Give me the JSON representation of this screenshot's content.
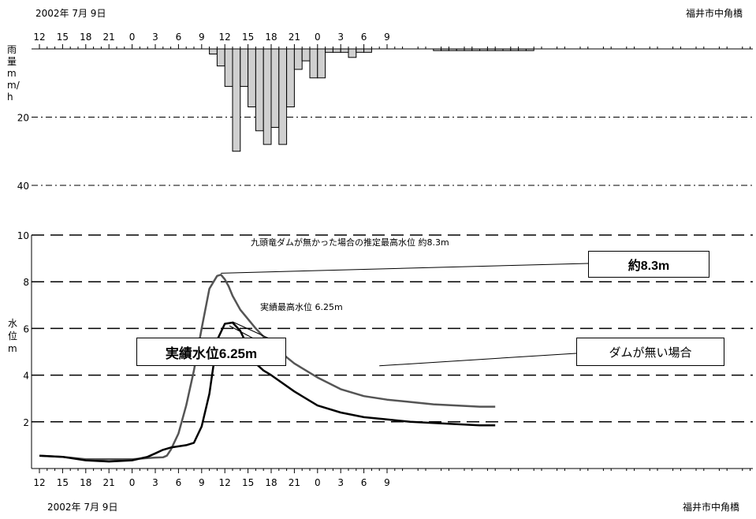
{
  "header": {
    "date_label": "2002年 7月 9日",
    "station_label": "福井市中角橋"
  },
  "footer": {
    "date_label": "2002年 7月 9日",
    "station_label": "福井市中角橋"
  },
  "colors": {
    "bar_fill": "#d0d0d0",
    "no_dam_line": "#555555",
    "actual_line": "#000000"
  },
  "chart_data": [
    {
      "type": "bar",
      "ylabel": "雨量 mm/h",
      "ylim": [
        0,
        40
      ],
      "y_ticks": [
        "20",
        "40"
      ],
      "inverted": true,
      "x_ticks": [
        "12",
        "15",
        "18",
        "21",
        "0",
        "3",
        "6",
        "9",
        "12",
        "15",
        "18",
        "21",
        "0",
        "3",
        "6",
        "9"
      ],
      "hours_since_start": [
        22,
        23,
        24,
        25,
        26,
        27,
        28,
        29,
        30,
        31,
        32,
        33,
        34,
        35,
        36,
        37,
        38,
        39,
        40,
        41,
        42,
        43,
        44,
        45,
        46,
        47,
        48,
        49,
        50,
        51,
        52,
        53,
        54,
        55,
        56,
        57,
        58,
        59,
        60,
        61,
        62,
        63,
        64,
        65
      ],
      "values": [
        1.5,
        5,
        11,
        30,
        11,
        17,
        24,
        28,
        23,
        28,
        17,
        6,
        3.5,
        8.5,
        8.5,
        1,
        1,
        1,
        2.5,
        1,
        1,
        0,
        0,
        0,
        0,
        0,
        0,
        0,
        0,
        0.5,
        0.5,
        0.5,
        0.5,
        0.5,
        0.5,
        0.5,
        0.5,
        0.5,
        0.5,
        0.5,
        0.5,
        0.5,
        0,
        0
      ]
    },
    {
      "type": "line",
      "ylabel": "水位 m",
      "ylim": [
        0,
        10
      ],
      "y_ticks": [
        "2",
        "4",
        "6",
        "8",
        "10"
      ],
      "x_ticks": [
        "12",
        "15",
        "18",
        "21",
        "0",
        "3",
        "6",
        "9",
        "12",
        "15",
        "18",
        "21",
        "0",
        "3",
        "6",
        "9"
      ],
      "series": [
        {
          "name": "ダムが無い場合",
          "hours_since_start": [
            0,
            3,
            6,
            9,
            12,
            14,
            15,
            16,
            16.5,
            17,
            18,
            19,
            20,
            21,
            22,
            23,
            23.5,
            24,
            24.5,
            25,
            26,
            27,
            28,
            30,
            33,
            36,
            39,
            42,
            45,
            48,
            51,
            54,
            57,
            59
          ],
          "values": [
            0.55,
            0.5,
            0.4,
            0.4,
            0.4,
            0.45,
            0.47,
            0.48,
            0.55,
            0.8,
            1.5,
            2.7,
            4.2,
            6.0,
            7.7,
            8.25,
            8.3,
            8.1,
            7.8,
            7.4,
            6.8,
            6.4,
            6.0,
            5.3,
            4.5,
            3.9,
            3.4,
            3.1,
            2.95,
            2.85,
            2.75,
            2.7,
            2.65,
            2.65
          ]
        },
        {
          "name": "実績水位",
          "hours_since_start": [
            0,
            3,
            6,
            9,
            12,
            14,
            15,
            16,
            17,
            18,
            19,
            20,
            21,
            22,
            23,
            24,
            25,
            26,
            27,
            28,
            29,
            30,
            33,
            36,
            39,
            42,
            45,
            48,
            51,
            54,
            57,
            59
          ],
          "values": [
            0.55,
            0.5,
            0.35,
            0.3,
            0.35,
            0.5,
            0.65,
            0.8,
            0.9,
            0.95,
            1.0,
            1.1,
            1.8,
            3.2,
            5.5,
            6.2,
            6.25,
            5.9,
            5.2,
            4.5,
            4.2,
            4.0,
            3.3,
            2.7,
            2.4,
            2.2,
            2.1,
            2.0,
            1.95,
            1.9,
            1.85,
            1.85
          ]
        }
      ],
      "annotations": {
        "no_dam_peak_text": "九頭竜ダムが無かった場合の推定最高水位 約8.3m",
        "no_dam_peak_box": "約8.3m",
        "actual_peak_text": "実績最高水位 6.25m",
        "actual_peak_box": "実績水位6.25m",
        "no_dam_box": "ダムが無い場合"
      }
    }
  ]
}
